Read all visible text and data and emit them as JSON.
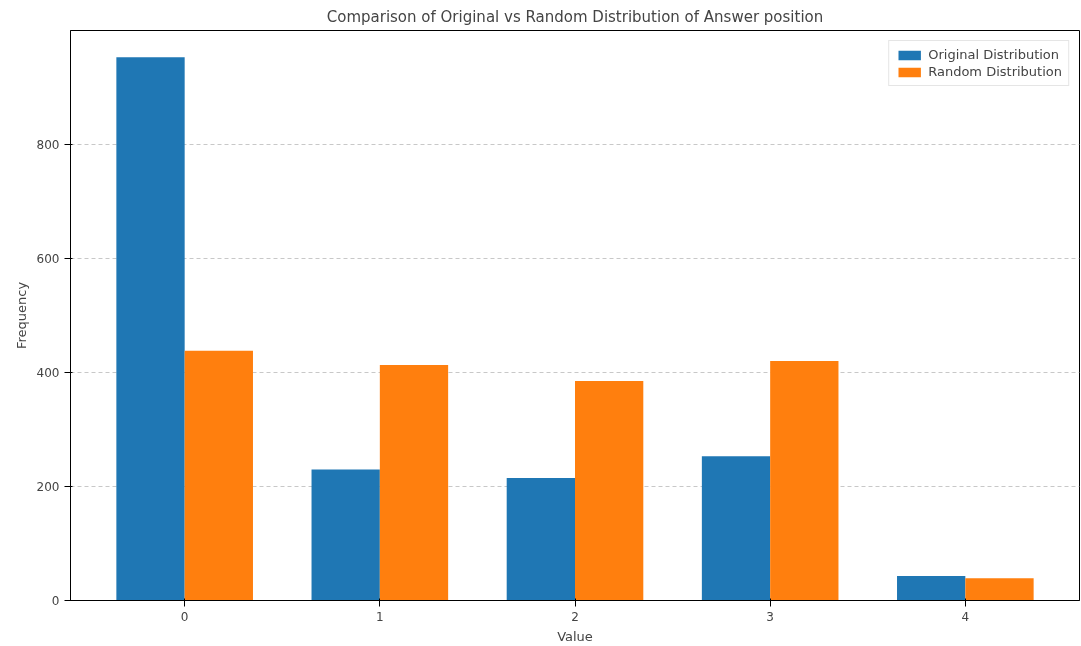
{
  "chart_data": {
    "type": "bar",
    "title": "Comparison of Original vs Random Distribution of Answer position",
    "xlabel": "Value",
    "ylabel": "Frequency",
    "categories": [
      "0",
      "1",
      "2",
      "3",
      "4"
    ],
    "series": [
      {
        "name": "Original Distribution",
        "color": "#1f77b4",
        "values": [
          953,
          230,
          215,
          253,
          43
        ]
      },
      {
        "name": "Random Distribution",
        "color": "#ff7f0e",
        "values": [
          438,
          413,
          385,
          420,
          39
        ]
      }
    ],
    "ylim": [
      0,
      1000
    ],
    "yticks": [
      0,
      200,
      400,
      600,
      800
    ],
    "grid": "y",
    "legend": "top right"
  }
}
